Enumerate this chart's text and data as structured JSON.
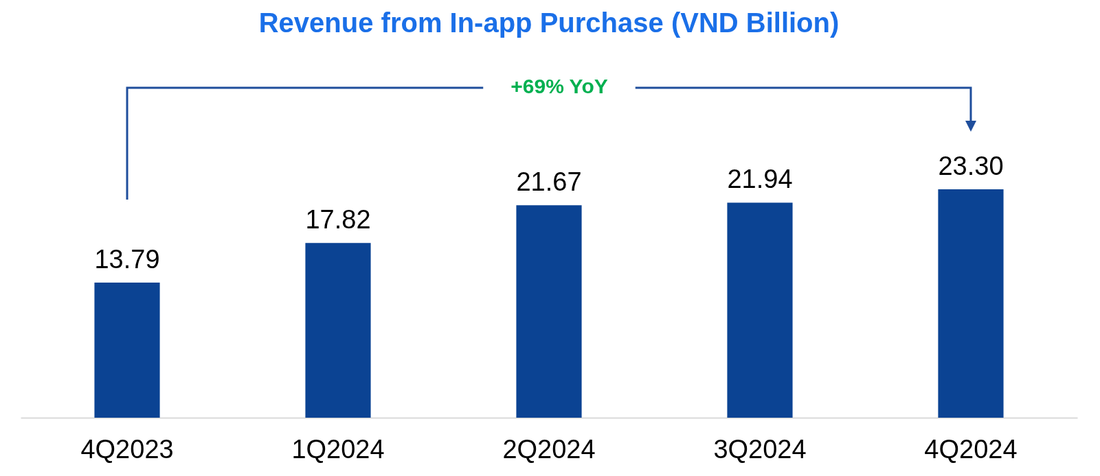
{
  "chart_data": {
    "type": "bar",
    "title": "Revenue from In-app Purchase (VND Billion)",
    "categories": [
      "4Q2023",
      "1Q2024",
      "2Q2024",
      "3Q2024",
      "4Q2024"
    ],
    "values": [
      13.79,
      17.82,
      21.67,
      21.94,
      23.3
    ],
    "value_labels": [
      "13.79",
      "17.82",
      "21.67",
      "21.94",
      "23.30"
    ],
    "color": "#0b4393",
    "annotations": [
      "+69% YoY"
    ]
  }
}
